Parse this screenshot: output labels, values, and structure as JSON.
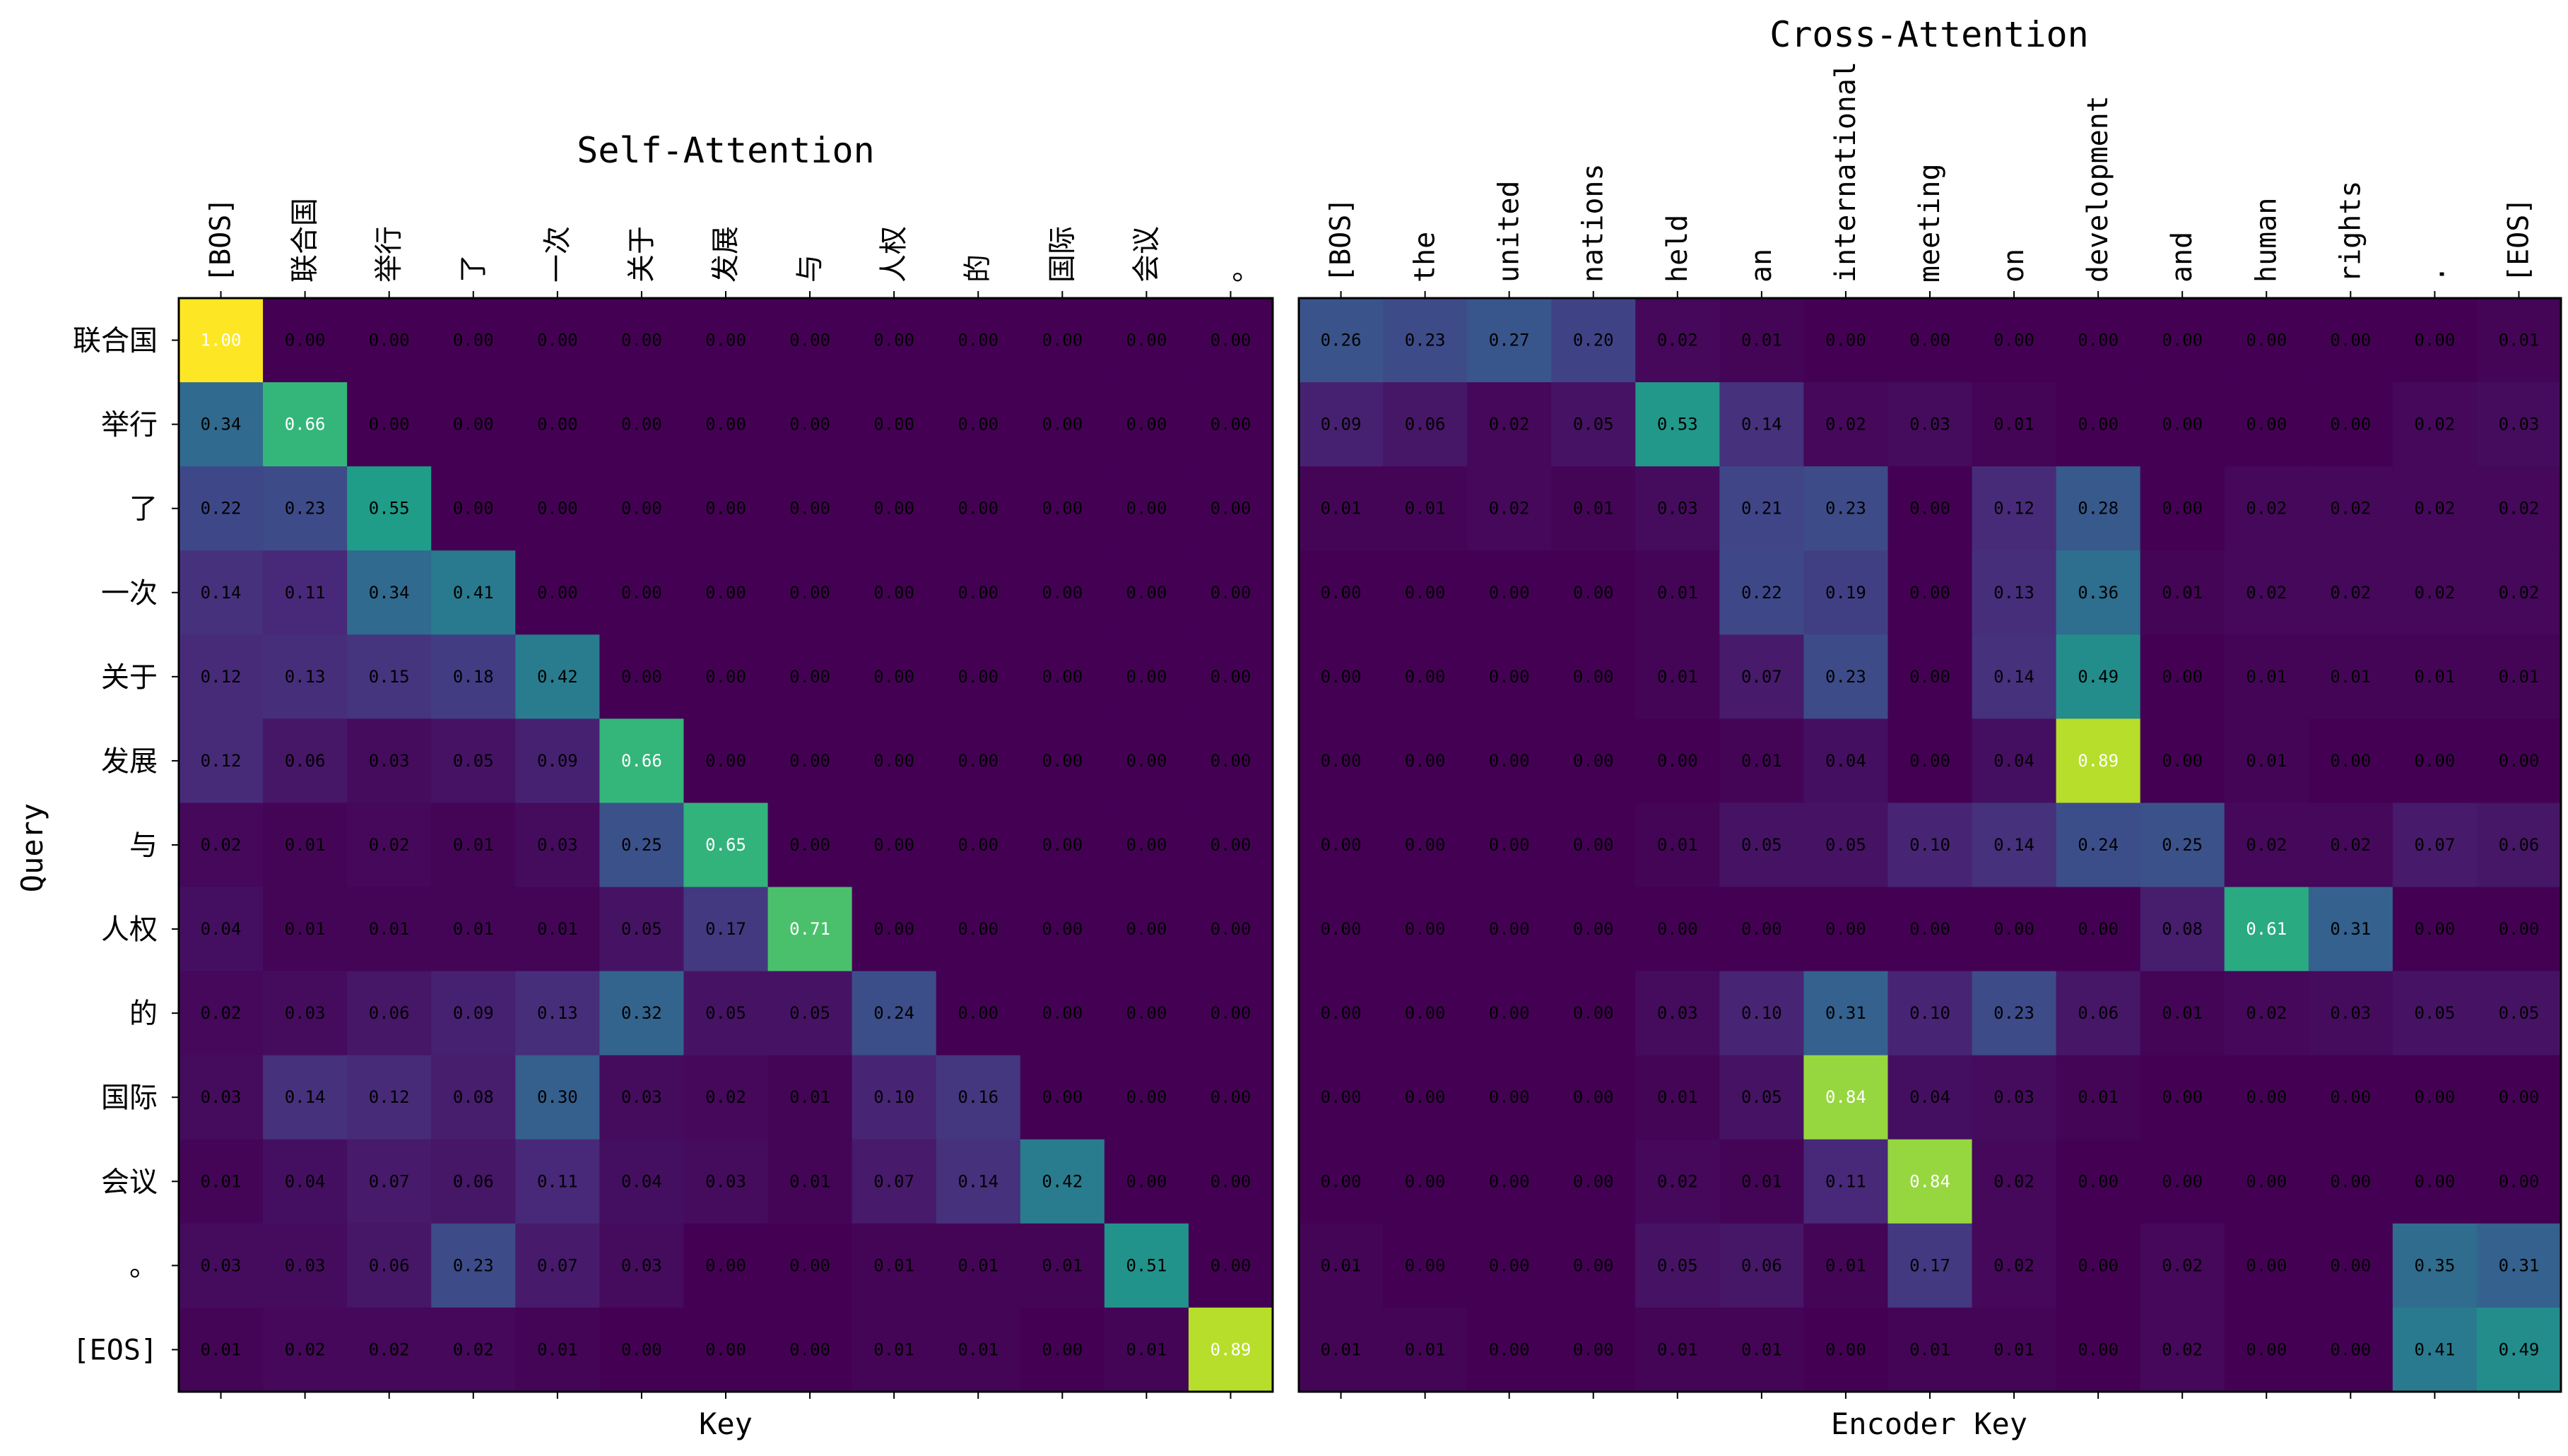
{
  "chart_data": [
    {
      "type": "heatmap",
      "title": "Self-Attention",
      "xlabel": "Key",
      "ylabel": "Query",
      "x": [
        "[BOS]",
        "联合国",
        "举行",
        "了",
        "一次",
        "关于",
        "发展",
        "与",
        "人权",
        "的",
        "国际",
        "会议",
        "。"
      ],
      "y": [
        "联合国",
        "举行",
        "了",
        "一次",
        "关于",
        "发展",
        "与",
        "人权",
        "的",
        "国际",
        "会议",
        "。",
        "[EOS]"
      ],
      "values": [
        [
          1.0,
          0.0,
          0.0,
          0.0,
          0.0,
          0.0,
          0.0,
          0.0,
          0.0,
          0.0,
          0.0,
          0.0,
          0.0
        ],
        [
          0.34,
          0.66,
          0.0,
          0.0,
          0.0,
          0.0,
          0.0,
          0.0,
          0.0,
          0.0,
          0.0,
          0.0,
          0.0
        ],
        [
          0.22,
          0.23,
          0.55,
          0.0,
          0.0,
          0.0,
          0.0,
          0.0,
          0.0,
          0.0,
          0.0,
          0.0,
          0.0
        ],
        [
          0.14,
          0.11,
          0.34,
          0.41,
          0.0,
          0.0,
          0.0,
          0.0,
          0.0,
          0.0,
          0.0,
          0.0,
          0.0
        ],
        [
          0.12,
          0.13,
          0.15,
          0.18,
          0.42,
          0.0,
          0.0,
          0.0,
          0.0,
          0.0,
          0.0,
          0.0,
          0.0
        ],
        [
          0.12,
          0.06,
          0.03,
          0.05,
          0.09,
          0.66,
          0.0,
          0.0,
          0.0,
          0.0,
          0.0,
          0.0,
          0.0
        ],
        [
          0.02,
          0.01,
          0.02,
          0.01,
          0.03,
          0.25,
          0.65,
          0.0,
          0.0,
          0.0,
          0.0,
          0.0,
          0.0
        ],
        [
          0.04,
          0.01,
          0.01,
          0.01,
          0.01,
          0.05,
          0.17,
          0.71,
          0.0,
          0.0,
          0.0,
          0.0,
          0.0
        ],
        [
          0.02,
          0.03,
          0.06,
          0.09,
          0.13,
          0.32,
          0.05,
          0.05,
          0.24,
          0.0,
          0.0,
          0.0,
          0.0
        ],
        [
          0.03,
          0.14,
          0.12,
          0.08,
          0.3,
          0.03,
          0.02,
          0.01,
          0.1,
          0.16,
          0.0,
          0.0,
          0.0
        ],
        [
          0.01,
          0.04,
          0.07,
          0.06,
          0.11,
          0.04,
          0.03,
          0.01,
          0.07,
          0.14,
          0.42,
          0.0,
          0.0
        ],
        [
          0.03,
          0.03,
          0.06,
          0.23,
          0.07,
          0.03,
          0.0,
          0.0,
          0.01,
          0.01,
          0.01,
          0.51,
          0.0
        ],
        [
          0.01,
          0.02,
          0.02,
          0.02,
          0.01,
          0.0,
          0.0,
          0.0,
          0.01,
          0.01,
          0.0,
          0.01,
          0.89
        ]
      ],
      "colormap": "viridis",
      "vmin": 0,
      "vmax": 1,
      "annotations": "cell values shown to 2 decimals"
    },
    {
      "type": "heatmap",
      "title": "Cross-Attention",
      "xlabel": "Encoder Key",
      "ylabel": "",
      "x": [
        "[BOS]",
        "the",
        "united",
        "nations",
        "held",
        "an",
        "international",
        "meeting",
        "on",
        "development",
        "and",
        "human",
        "rights",
        ".",
        "[EOS]"
      ],
      "y": [
        "联合国",
        "举行",
        "了",
        "一次",
        "关于",
        "发展",
        "与",
        "人权",
        "的",
        "国际",
        "会议",
        "。",
        "[EOS]"
      ],
      "values": [
        [
          0.26,
          0.23,
          0.27,
          0.2,
          0.02,
          0.01,
          0.0,
          0.0,
          0.0,
          0.0,
          0.0,
          0.0,
          0.0,
          0.0,
          0.01
        ],
        [
          0.09,
          0.06,
          0.02,
          0.05,
          0.53,
          0.14,
          0.02,
          0.03,
          0.01,
          0.0,
          0.0,
          0.0,
          0.0,
          0.02,
          0.03
        ],
        [
          0.01,
          0.01,
          0.02,
          0.01,
          0.03,
          0.21,
          0.23,
          0.0,
          0.12,
          0.28,
          0.0,
          0.02,
          0.02,
          0.02,
          0.02
        ],
        [
          0.0,
          0.0,
          0.0,
          0.0,
          0.01,
          0.22,
          0.19,
          0.0,
          0.13,
          0.36,
          0.01,
          0.02,
          0.02,
          0.02,
          0.02
        ],
        [
          0.0,
          0.0,
          0.0,
          0.0,
          0.01,
          0.07,
          0.23,
          0.0,
          0.14,
          0.49,
          0.0,
          0.01,
          0.01,
          0.01,
          0.01
        ],
        [
          0.0,
          0.0,
          0.0,
          0.0,
          0.0,
          0.01,
          0.04,
          0.0,
          0.04,
          0.89,
          0.0,
          0.01,
          0.0,
          0.0,
          0.0
        ],
        [
          0.0,
          0.0,
          0.0,
          0.0,
          0.01,
          0.05,
          0.05,
          0.1,
          0.14,
          0.24,
          0.25,
          0.02,
          0.02,
          0.07,
          0.06
        ],
        [
          0.0,
          0.0,
          0.0,
          0.0,
          0.0,
          0.0,
          0.0,
          0.0,
          0.0,
          0.0,
          0.08,
          0.61,
          0.31,
          0.0,
          0.0
        ],
        [
          0.0,
          0.0,
          0.0,
          0.0,
          0.03,
          0.1,
          0.31,
          0.1,
          0.23,
          0.06,
          0.01,
          0.02,
          0.03,
          0.05,
          0.05
        ],
        [
          0.0,
          0.0,
          0.0,
          0.0,
          0.01,
          0.05,
          0.84,
          0.04,
          0.03,
          0.01,
          0.0,
          0.0,
          0.0,
          0.0,
          0.0
        ],
        [
          0.0,
          0.0,
          0.0,
          0.0,
          0.02,
          0.01,
          0.11,
          0.84,
          0.02,
          0.0,
          0.0,
          0.0,
          0.0,
          0.0,
          0.0
        ],
        [
          0.01,
          0.0,
          0.0,
          0.0,
          0.05,
          0.06,
          0.01,
          0.17,
          0.02,
          0.0,
          0.02,
          0.0,
          0.0,
          0.35,
          0.31
        ],
        [
          0.01,
          0.01,
          0.0,
          0.0,
          0.01,
          0.01,
          0.0,
          0.01,
          0.01,
          0.0,
          0.02,
          0.0,
          0.0,
          0.41,
          0.49
        ]
      ],
      "colormap": "viridis",
      "vmin": 0,
      "vmax": 1,
      "annotations": "cell values shown to 2 decimals"
    }
  ]
}
